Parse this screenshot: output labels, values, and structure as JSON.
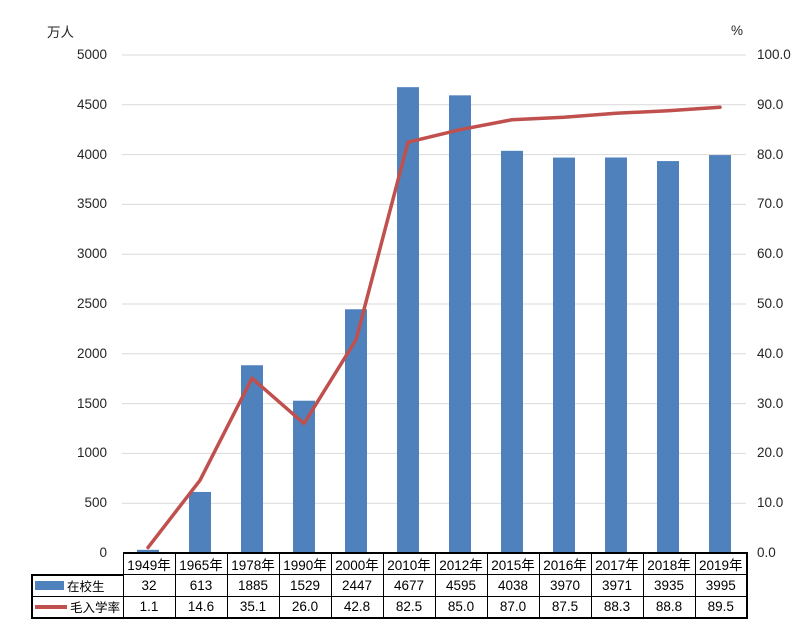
{
  "chart_data": {
    "type": "bar",
    "title": "",
    "categories": [
      "1949年",
      "1965年",
      "1978年",
      "1990年",
      "2000年",
      "2010年",
      "2012年",
      "2015年",
      "2016年",
      "2017年",
      "2018年",
      "2019年"
    ],
    "series": [
      {
        "name": "在校生",
        "type": "bar",
        "axis": "left",
        "color": "#4f81bd",
        "values": [
          32,
          613,
          1885,
          1529,
          2447,
          4677,
          4595,
          4038,
          3970,
          3971,
          3935,
          3995
        ]
      },
      {
        "name": "毛入学率",
        "type": "line",
        "axis": "right",
        "color": "#c0504d",
        "values": [
          1.1,
          14.6,
          35.1,
          26.0,
          42.8,
          82.5,
          85.0,
          87.0,
          87.5,
          88.3,
          88.8,
          89.5
        ]
      }
    ],
    "left_axis": {
      "unit": "万人",
      "min": 0,
      "max": 5000,
      "step": 500,
      "decimals": 0
    },
    "right_axis": {
      "unit": "%",
      "min": 0,
      "max": 100,
      "step": 10,
      "decimals": 1
    },
    "grid": true,
    "legend_position": "data-table-left",
    "data_table_shown": true
  },
  "colors": {
    "bar": "#4f81bd",
    "line": "#c0504d",
    "gridline": "#d9d9d9",
    "axis_text": "#262626",
    "table_border": "#000000",
    "background": "#ffffff"
  }
}
